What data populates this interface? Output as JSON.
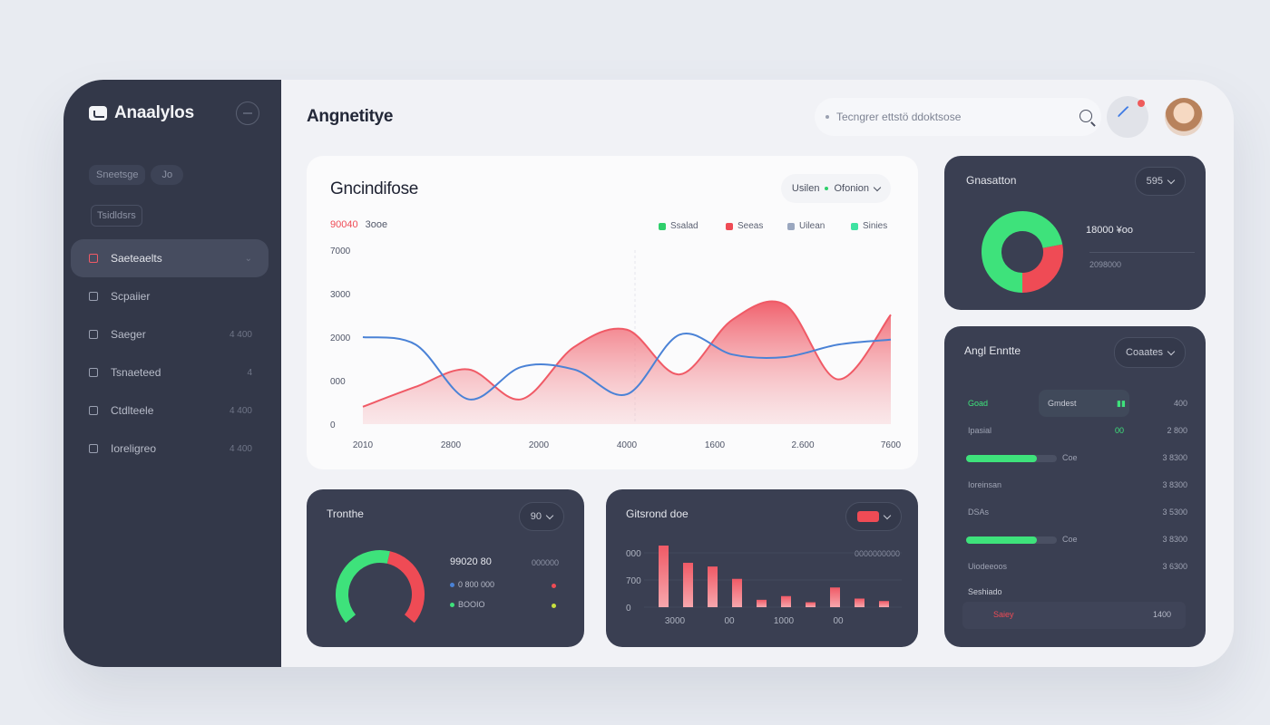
{
  "sidebar": {
    "brand": "Anaalylos",
    "chips": [
      "Sneetsge",
      "Jo"
    ],
    "tag": "Tsidldsrs",
    "items": [
      {
        "label": "Saeteaelts",
        "count": ""
      },
      {
        "label": "Scpaiier",
        "count": ""
      },
      {
        "label": "Saeger",
        "count": "4 400"
      },
      {
        "label": "Tsnaeteed",
        "count": "4"
      },
      {
        "label": "Ctdlteele",
        "count": "4 400"
      },
      {
        "label": "Ioreligreo",
        "count": "4 400"
      }
    ]
  },
  "header": {
    "title": "Angnetitye",
    "search_placeholder": "Tecngrer ettstö ddoktsose"
  },
  "main_chart": {
    "title": "Gncindifose",
    "select_label": "Usilen",
    "select_value": "Ofonion",
    "kpi_value": "90040",
    "kpi_label": "3ooe",
    "legend": [
      {
        "label": "Ssalad",
        "color": "#2fcf6b"
      },
      {
        "label": "Seeas",
        "color": "#ef4b55"
      },
      {
        "label": "Uilean",
        "color": "#9aa7bf"
      },
      {
        "label": "Sinies",
        "color": "#3ee2a1"
      }
    ],
    "chart_data": {
      "type": "area",
      "y_tick_labels": [
        "7000",
        "3000",
        "2000",
        "000",
        "0"
      ],
      "x_tick_labels": [
        "2010",
        "2800",
        "2000",
        "4000",
        "1600",
        "2.600",
        "7600"
      ],
      "ylim": [
        0,
        7000
      ],
      "x": [
        0,
        0.1,
        0.2,
        0.3,
        0.4,
        0.5,
        0.6,
        0.7,
        0.8,
        0.9,
        1.0
      ],
      "series": [
        {
          "color": "#f05a66",
          "values": [
            700,
            1500,
            2200,
            1000,
            3100,
            3800,
            2000,
            4200,
            4800,
            1800,
            4400
          ]
        },
        {
          "color": "#4a82d6",
          "values": [
            3500,
            3200,
            1000,
            2300,
            2200,
            1200,
            3600,
            2800,
            2700,
            3200,
            3400
          ]
        }
      ]
    }
  },
  "donut_card": {
    "title": "Gnasatton",
    "select_value": "595",
    "value": "18000 ¥oo",
    "sub": "2098000",
    "chart_data": {
      "type": "pie",
      "values": [
        72,
        28
      ],
      "colors": [
        "#3ee27b",
        "#ef4b55"
      ]
    }
  },
  "list_card": {
    "title": "Angl Enntte",
    "select_value": "Coaates",
    "rows": [
      {
        "name": "Goad",
        "extra": "Gmdest",
        "val": "400"
      },
      {
        "name": "Ipasial",
        "extra": "00",
        "val": "2 800"
      },
      {
        "name": "",
        "bar": 0.78,
        "bar_label": "Coe",
        "val": "3 8300"
      },
      {
        "name": "Ioreinsan",
        "val": "3 8300"
      },
      {
        "name": "DSAs",
        "val": "3 5300"
      },
      {
        "name": "",
        "bar": 0.78,
        "bar_label": "Coe",
        "val": "3 8300"
      },
      {
        "name": "Uiodeeoos",
        "val": "3 6300"
      }
    ],
    "section_label": "Seshiado",
    "footer_name": "Saiey",
    "footer_val": "1400"
  },
  "gauge_card": {
    "title": "Tronthe",
    "select_value": "90",
    "value": "99020 80",
    "line1": "0 800 000",
    "line2": "BOOIO",
    "meta": "000000",
    "chart_data": {
      "type": "pie",
      "values": [
        55,
        45
      ],
      "colors": [
        "#3ee27b",
        "#ef4b55"
      ]
    }
  },
  "bar_card": {
    "title": "Gitsrond doe",
    "meta": "0000000000",
    "chart_data": {
      "type": "bar",
      "y_tick_labels": [
        "000",
        "700",
        "0"
      ],
      "x_tick_labels": [
        "3000",
        "00",
        "1000",
        "00"
      ],
      "ylim": [
        0,
        100
      ],
      "values": [
        100,
        72,
        66,
        46,
        12,
        18,
        8,
        32,
        14,
        10
      ]
    }
  }
}
